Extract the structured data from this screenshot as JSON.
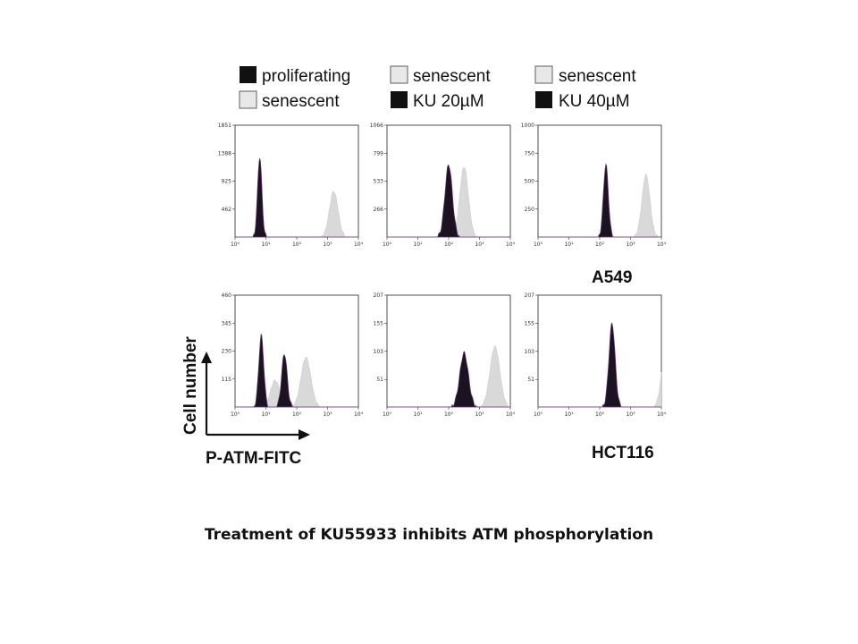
{
  "caption": "Treatment of KU55933 inhibits ATM phosphorylation",
  "colors": {
    "filled": "#111111",
    "outline": "#888888",
    "dark": "#1b1320",
    "light": "#d9d9d9",
    "tint": "#6a3a7a"
  },
  "legends": [
    {
      "entries": [
        {
          "label": "proliferating",
          "swatch": "filled"
        },
        {
          "label": "senescent",
          "swatch": "outline"
        }
      ]
    },
    {
      "entries": [
        {
          "label": "senescent",
          "swatch": "outline"
        },
        {
          "label": "KU 20µM",
          "swatch": "filled"
        }
      ]
    },
    {
      "entries": [
        {
          "label": "senescent",
          "swatch": "outline"
        },
        {
          "label": "KU 40µM",
          "swatch": "filled"
        }
      ]
    }
  ],
  "x_ticks": [
    "10⁰",
    "10¹",
    "10²",
    "10³",
    "10⁴"
  ],
  "y_axis_label": "Cell number",
  "x_axis_label": "P-ATM-FITC",
  "cell_lines": [
    "A549",
    "HCT116"
  ],
  "chart_data": [
    {
      "type": "area",
      "row": 0,
      "col": 0,
      "xscale": "log",
      "xlim": [
        1,
        10000
      ],
      "ylim": [
        0,
        1851
      ],
      "y_ticks": [
        "1851",
        "1388",
        "925",
        "462"
      ],
      "series": [
        {
          "swatch": "light",
          "peaks": [
            {
              "center": 3.2,
              "height": 760,
              "width": 0.14
            }
          ]
        },
        {
          "swatch": "dark",
          "peaks": [
            {
              "center": 0.8,
              "height": 1330,
              "width": 0.07
            }
          ]
        }
      ]
    },
    {
      "type": "area",
      "row": 0,
      "col": 1,
      "xscale": "log",
      "xlim": [
        1,
        10000
      ],
      "ylim": [
        0,
        1066
      ],
      "y_ticks": [
        "1066",
        "799",
        "533",
        "266"
      ],
      "series": [
        {
          "swatch": "light",
          "peaks": [
            {
              "center": 2.5,
              "height": 670,
              "width": 0.14
            }
          ]
        },
        {
          "swatch": "dark",
          "peaks": [
            {
              "center": 2.0,
              "height": 690,
              "width": 0.12
            }
          ]
        }
      ]
    },
    {
      "type": "area",
      "row": 0,
      "col": 2,
      "xscale": "log",
      "xlim": [
        1,
        10000
      ],
      "ylim": [
        0,
        1000
      ],
      "y_ticks": [
        "1000",
        "750",
        "500",
        "250"
      ],
      "series": [
        {
          "swatch": "light",
          "peaks": [
            {
              "center": 3.5,
              "height": 560,
              "width": 0.13
            }
          ]
        },
        {
          "swatch": "dark",
          "peaks": [
            {
              "center": 2.2,
              "height": 650,
              "width": 0.08
            }
          ]
        }
      ]
    },
    {
      "type": "area",
      "row": 1,
      "col": 0,
      "xscale": "log",
      "xlim": [
        1,
        10000
      ],
      "ylim": [
        0,
        460
      ],
      "y_ticks": [
        "460",
        "345",
        "230",
        "115"
      ],
      "series": [
        {
          "swatch": "light",
          "peaks": [
            {
              "center": 2.3,
              "height": 205,
              "width": 0.16
            },
            {
              "center": 1.3,
              "height": 110,
              "width": 0.15
            }
          ]
        },
        {
          "swatch": "dark",
          "peaks": [
            {
              "center": 0.85,
              "height": 295,
              "width": 0.08
            },
            {
              "center": 1.6,
              "height": 220,
              "width": 0.09
            }
          ]
        }
      ]
    },
    {
      "type": "area",
      "row": 1,
      "col": 1,
      "xscale": "log",
      "xlim": [
        1,
        10000
      ],
      "ylim": [
        0,
        207
      ],
      "y_ticks": [
        "207",
        "155",
        "103",
        "51"
      ],
      "series": [
        {
          "swatch": "light",
          "peaks": [
            {
              "center": 3.5,
              "height": 112,
              "width": 0.16
            }
          ]
        },
        {
          "swatch": "dark",
          "peaks": [
            {
              "center": 2.5,
              "height": 100,
              "width": 0.14
            }
          ]
        }
      ]
    },
    {
      "type": "area",
      "row": 1,
      "col": 2,
      "xscale": "log",
      "xlim": [
        1,
        10000
      ],
      "ylim": [
        0,
        207
      ],
      "y_ticks": [
        "207",
        "155",
        "103",
        "51"
      ],
      "series": [
        {
          "swatch": "light",
          "peaks": [
            {
              "center": 4.2,
              "height": 155,
              "width": 0.15
            }
          ]
        },
        {
          "swatch": "dark",
          "peaks": [
            {
              "center": 2.4,
              "height": 155,
              "width": 0.1
            }
          ]
        }
      ]
    }
  ]
}
